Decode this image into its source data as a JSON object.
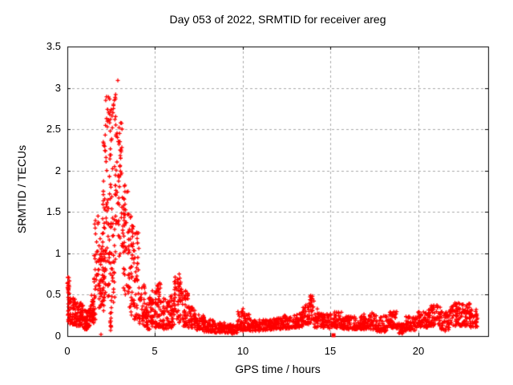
{
  "window": {
    "background": "#ffffff",
    "text_color": "#000000"
  },
  "chart_data": {
    "type": "scatter",
    "title": "Day 053 of 2022, SRMTID for receiver areg",
    "xlabel": "GPS time / hours",
    "ylabel": "SRMTID / TECUs",
    "xlim": [
      0,
      24
    ],
    "ylim": [
      0,
      3.5
    ],
    "xticks": [
      0,
      5,
      10,
      15,
      20
    ],
    "yticks": [
      0,
      0.5,
      1,
      1.5,
      2,
      2.5,
      3,
      3.5
    ],
    "xtick_labels": [
      "0",
      "5",
      "10",
      "15",
      "20"
    ],
    "ytick_labels": [
      "0",
      "0.5",
      "1",
      "1.5",
      "2",
      "2.5",
      "3",
      "3.5"
    ],
    "grid": {
      "show": true,
      "color": "#a8a8a8",
      "dash": [
        3,
        3
      ]
    },
    "frame_color": "#000000",
    "tick_length": 4,
    "legend": "none",
    "marker": {
      "shape": "plus",
      "size": 5,
      "color": "#ff0000"
    },
    "series": [
      {
        "name": "SRMTID",
        "color": "#ff0000",
        "seed": 20220531,
        "notable_points": [
          [
            0.03,
            0.71
          ],
          [
            0.05,
            0.64
          ],
          [
            0.08,
            0.58
          ],
          [
            1.92,
            0.02
          ],
          [
            2.47,
            0.07
          ],
          [
            2.46,
            0.12
          ],
          [
            2.48,
            0.18
          ],
          [
            2.19,
            2.85
          ],
          [
            2.24,
            2.63
          ],
          [
            2.3,
            2.74
          ],
          [
            2.36,
            2.7
          ],
          [
            2.42,
            2.68
          ],
          [
            2.47,
            2.72
          ],
          [
            2.55,
            2.66
          ],
          [
            2.6,
            2.7
          ],
          [
            2.63,
            2.75
          ],
          [
            2.88,
            3.09
          ],
          [
            2.95,
            2.52
          ],
          [
            2.98,
            2.45
          ],
          [
            3.0,
            2.35
          ],
          [
            3.02,
            2.25
          ],
          [
            3.04,
            2.15
          ],
          [
            3.0,
            2.05
          ],
          [
            3.05,
            1.95
          ],
          [
            2.1,
            1.55
          ],
          [
            1.75,
            1.45
          ],
          [
            1.68,
            1.02
          ],
          [
            3.95,
            1.25
          ],
          [
            3.98,
            1.18
          ],
          [
            4.02,
            0.95
          ],
          [
            4.0,
            0.88
          ],
          [
            4.05,
            0.8
          ],
          [
            5.28,
            0.64
          ],
          [
            5.3,
            0.58
          ],
          [
            6.38,
            0.75
          ],
          [
            6.42,
            0.7
          ],
          [
            6.3,
            0.68
          ],
          [
            9.4,
            0.03
          ],
          [
            10.02,
            0.33
          ],
          [
            9.98,
            0.3
          ],
          [
            13.88,
            0.49
          ],
          [
            13.92,
            0.46
          ],
          [
            13.95,
            0.42
          ],
          [
            13.85,
            0.44
          ],
          [
            17.9,
            0.05
          ],
          [
            18.95,
            0.04
          ],
          [
            20.9,
            0.37
          ],
          [
            21.1,
            0.35
          ],
          [
            21.55,
            0.06
          ],
          [
            22.15,
            0.37
          ],
          [
            22.3,
            0.4
          ],
          [
            22.5,
            0.38
          ],
          [
            23.3,
            0.25
          ],
          [
            23.35,
            0.2
          ]
        ],
        "density_bands": [
          [
            0.0,
            0.12,
            0.25,
            0.72,
            22,
            1.0
          ],
          [
            0.05,
            0.5,
            0.14,
            0.46,
            60,
            1.3
          ],
          [
            0.5,
            0.9,
            0.12,
            0.4,
            55,
            1.3
          ],
          [
            0.9,
            1.3,
            0.08,
            0.32,
            55,
            1.3
          ],
          [
            1.3,
            1.6,
            0.15,
            0.52,
            45,
            1.2
          ],
          [
            1.45,
            1.85,
            0.55,
            1.05,
            22,
            1.1
          ],
          [
            1.55,
            1.95,
            0.9,
            1.5,
            10,
            1.0
          ],
          [
            1.8,
            2.1,
            0.3,
            1.1,
            40,
            1.2
          ],
          [
            2.0,
            2.35,
            0.45,
            1.6,
            45,
            1.1
          ],
          [
            2.05,
            2.35,
            1.5,
            2.4,
            18,
            1.0
          ],
          [
            2.15,
            2.5,
            2.4,
            2.9,
            12,
            1.0
          ],
          [
            2.35,
            2.75,
            0.4,
            1.6,
            48,
            1.1
          ],
          [
            2.44,
            2.52,
            0.06,
            0.4,
            8,
            1.0
          ],
          [
            2.4,
            2.85,
            1.6,
            2.6,
            24,
            1.0
          ],
          [
            2.55,
            2.78,
            2.6,
            2.95,
            8,
            1.0
          ],
          [
            2.75,
            3.0,
            1.2,
            2.55,
            22,
            1.0
          ],
          [
            2.9,
            3.12,
            1.9,
            2.58,
            14,
            1.0
          ],
          [
            2.95,
            3.3,
            0.9,
            1.95,
            32,
            1.1
          ],
          [
            3.2,
            3.55,
            0.5,
            1.75,
            40,
            1.2
          ],
          [
            3.5,
            3.8,
            0.25,
            1.45,
            42,
            1.3
          ],
          [
            3.8,
            4.1,
            0.2,
            1.25,
            35,
            1.4
          ],
          [
            4.1,
            4.45,
            0.12,
            0.62,
            40,
            1.3
          ],
          [
            4.45,
            4.8,
            0.08,
            0.48,
            40,
            1.3
          ],
          [
            4.8,
            5.1,
            0.1,
            0.55,
            40,
            1.3
          ],
          [
            5.1,
            5.45,
            0.1,
            0.66,
            40,
            1.3
          ],
          [
            5.45,
            5.8,
            0.08,
            0.46,
            40,
            1.3
          ],
          [
            5.8,
            6.1,
            0.1,
            0.5,
            40,
            1.3
          ],
          [
            6.1,
            6.55,
            0.15,
            0.76,
            50,
            1.2
          ],
          [
            6.55,
            6.9,
            0.12,
            0.55,
            40,
            1.3
          ],
          [
            6.9,
            7.3,
            0.1,
            0.36,
            40,
            1.3
          ],
          [
            7.3,
            7.8,
            0.07,
            0.27,
            45,
            1.3
          ],
          [
            7.8,
            8.4,
            0.05,
            0.2,
            50,
            1.3
          ],
          [
            8.4,
            9.0,
            0.04,
            0.16,
            55,
            1.2
          ],
          [
            9.0,
            9.7,
            0.03,
            0.14,
            60,
            1.2
          ],
          [
            9.7,
            10.05,
            0.06,
            0.31,
            35,
            1.2
          ],
          [
            10.05,
            10.4,
            0.07,
            0.28,
            35,
            1.3
          ],
          [
            10.4,
            11.0,
            0.06,
            0.2,
            55,
            1.3
          ],
          [
            11.0,
            11.6,
            0.07,
            0.2,
            55,
            1.3
          ],
          [
            11.6,
            12.2,
            0.08,
            0.22,
            55,
            1.3
          ],
          [
            12.2,
            12.8,
            0.09,
            0.25,
            55,
            1.3
          ],
          [
            12.8,
            13.4,
            0.1,
            0.27,
            55,
            1.3
          ],
          [
            13.4,
            13.75,
            0.12,
            0.38,
            35,
            1.2
          ],
          [
            13.75,
            14.1,
            0.14,
            0.5,
            35,
            1.1
          ],
          [
            14.1,
            14.5,
            0.1,
            0.33,
            40,
            1.3
          ],
          [
            14.5,
            15.1,
            0.09,
            0.27,
            55,
            1.3
          ],
          [
            15.1,
            15.65,
            0.1,
            0.3,
            50,
            1.3
          ],
          [
            15.65,
            16.3,
            0.08,
            0.24,
            60,
            1.3
          ],
          [
            16.3,
            16.9,
            0.08,
            0.26,
            55,
            1.3
          ],
          [
            16.9,
            17.6,
            0.08,
            0.28,
            60,
            1.3
          ],
          [
            17.6,
            18.2,
            0.05,
            0.25,
            55,
            1.3
          ],
          [
            18.2,
            18.8,
            0.09,
            0.3,
            55,
            1.2
          ],
          [
            18.8,
            19.3,
            0.03,
            0.17,
            45,
            1.2
          ],
          [
            19.3,
            20.0,
            0.07,
            0.24,
            60,
            1.3
          ],
          [
            20.0,
            20.6,
            0.1,
            0.3,
            55,
            1.2
          ],
          [
            20.6,
            21.3,
            0.12,
            0.38,
            60,
            1.2
          ],
          [
            21.3,
            21.8,
            0.07,
            0.3,
            45,
            1.3
          ],
          [
            21.8,
            22.4,
            0.12,
            0.4,
            55,
            1.1
          ],
          [
            22.4,
            23.0,
            0.12,
            0.4,
            55,
            1.1
          ],
          [
            23.0,
            23.4,
            0.1,
            0.33,
            35,
            1.2
          ]
        ],
        "square_points": [
          [
            15.18,
            0.01
          ]
        ]
      }
    ]
  }
}
